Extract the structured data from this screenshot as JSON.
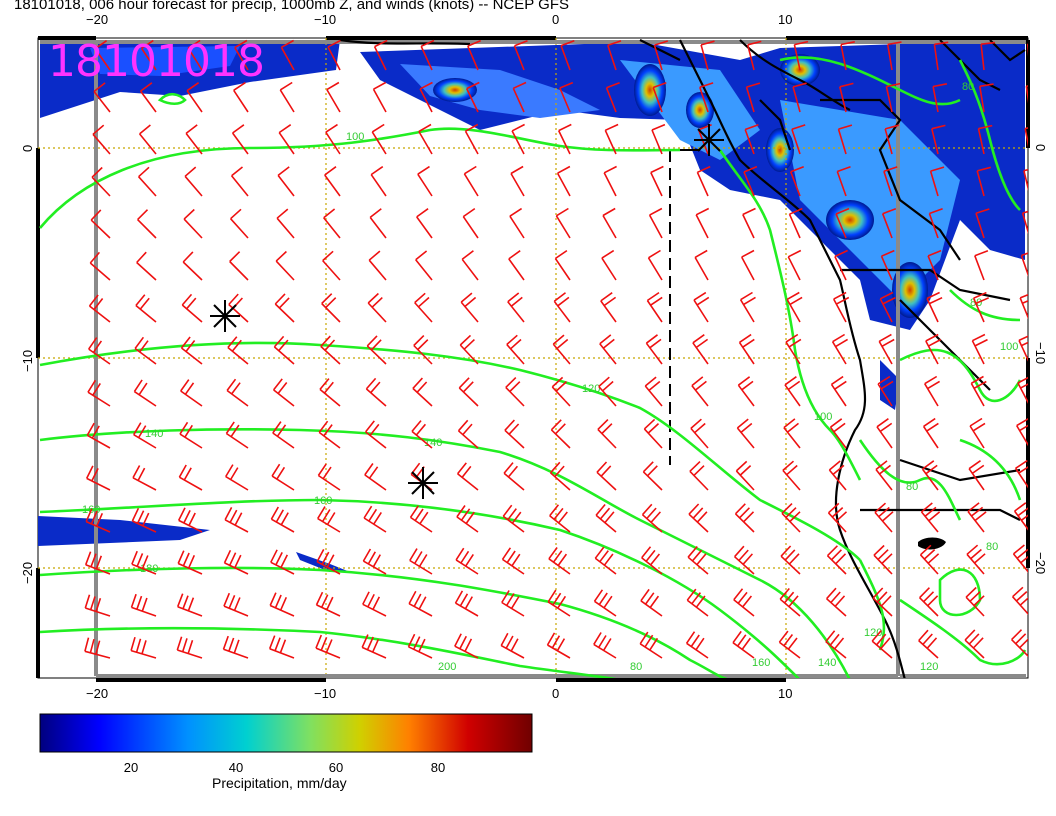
{
  "title": "18101018, 006 hour forecast for precip, 1000mb Z, and winds (knots) -- NCEP GFS",
  "stamp": "18101018",
  "colors": {
    "contour": "#22ee22",
    "barb": "#ee1111",
    "coast": "#000000",
    "grid": "#c8a800",
    "frame": "#888888"
  },
  "axes": {
    "lon_ticks": [
      "−20",
      "−10",
      "0",
      "10"
    ],
    "lat_ticks": [
      "0",
      "−10",
      "−20"
    ]
  },
  "contour_labels": [
    "100",
    "120",
    "140",
    "160",
    "180",
    "200",
    "80",
    "80",
    "100",
    "120",
    "120",
    "140",
    "160",
    "80",
    "100",
    "80",
    "80"
  ],
  "colorbar": {
    "title": "Precipitation, mm/day",
    "ticks": [
      "20",
      "40",
      "60",
      "80"
    ],
    "colors": [
      "#00007f",
      "#0000ff",
      "#0080ff",
      "#00d0d0",
      "#60e080",
      "#d0d000",
      "#ff8000",
      "#d00000",
      "#700000"
    ]
  },
  "markers": [
    "high-marker",
    "low-marker",
    "low-marker-2"
  ]
}
